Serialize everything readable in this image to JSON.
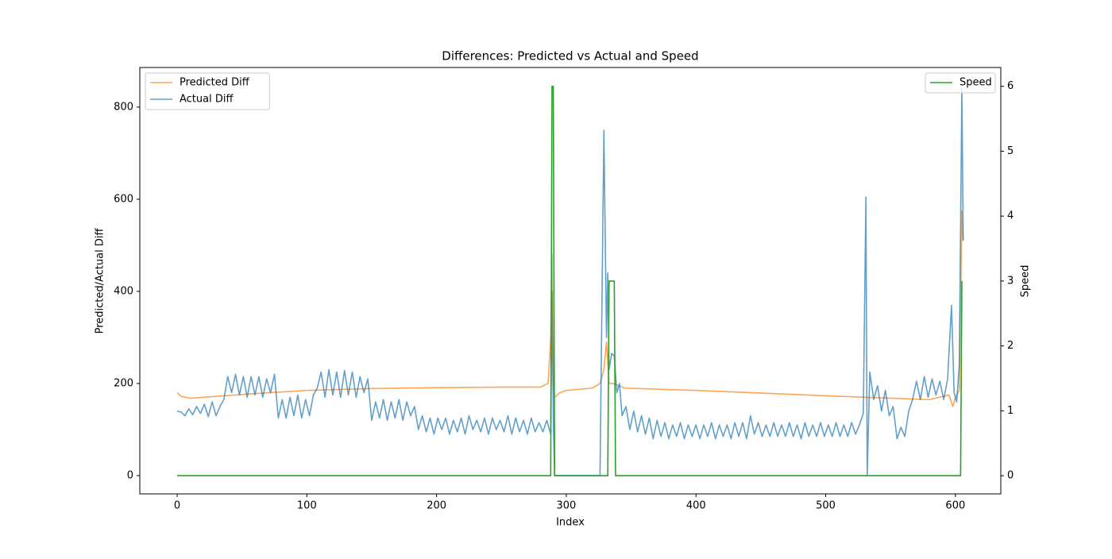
{
  "chart_data": {
    "type": "line",
    "title": "Differences: Predicted vs Actual and Speed",
    "xlabel": "Index",
    "ylabel": "Predicted/Actual Diff",
    "y2label": "Speed",
    "xlim": [
      -28.8,
      635
    ],
    "ylim": [
      -39.7,
      886
    ],
    "y2lim": [
      -0.28,
      6.29
    ],
    "xticks": [
      0,
      100,
      200,
      300,
      400,
      500,
      600
    ],
    "yticks": [
      0,
      200,
      400,
      600,
      800
    ],
    "y2ticks": [
      0,
      1,
      2,
      3,
      4,
      5,
      6
    ],
    "legend": "upper left",
    "y2legend": "upper right",
    "series": [
      {
        "name": "Predicted Diff",
        "color": "#ff7f0e",
        "x": [
          0,
          3,
          10,
          30,
          60,
          100,
          150,
          200,
          250,
          280,
          286,
          288,
          289,
          290,
          291,
          295,
          300,
          320,
          326,
          329,
          331,
          333,
          336,
          338,
          345,
          400,
          460,
          530,
          580,
          595,
          598,
          600,
          603,
          605,
          606
        ],
        "values": [
          180,
          172,
          168,
          172,
          178,
          185,
          189,
          191,
          192,
          192,
          200,
          300,
          480,
          200,
          170,
          180,
          185,
          190,
          200,
          230,
          290,
          200,
          200,
          198,
          190,
          185,
          178,
          170,
          165,
          175,
          150,
          170,
          185,
          575,
          510
        ]
      },
      {
        "name": "Actual Diff",
        "color": "#1f77b4",
        "x": [
          0,
          3,
          6,
          9,
          12,
          15,
          18,
          21,
          24,
          27,
          30,
          33,
          36,
          39,
          42,
          45,
          48,
          51,
          54,
          57,
          60,
          63,
          66,
          69,
          72,
          75,
          78,
          81,
          84,
          87,
          90,
          93,
          96,
          99,
          102,
          105,
          108,
          111,
          114,
          117,
          120,
          123,
          126,
          129,
          132,
          135,
          138,
          141,
          144,
          147,
          150,
          153,
          156,
          159,
          162,
          165,
          168,
          171,
          174,
          177,
          180,
          183,
          186,
          189,
          192,
          195,
          198,
          201,
          204,
          207,
          210,
          213,
          216,
          219,
          222,
          225,
          228,
          231,
          234,
          237,
          240,
          243,
          246,
          249,
          252,
          255,
          258,
          261,
          264,
          267,
          270,
          273,
          276,
          279,
          282,
          285,
          288,
          289,
          290,
          291,
          326,
          329,
          331,
          332,
          333,
          335,
          337,
          339,
          341,
          343,
          346,
          349,
          352,
          355,
          358,
          361,
          364,
          367,
          370,
          373,
          376,
          379,
          382,
          385,
          388,
          391,
          394,
          397,
          400,
          403,
          406,
          409,
          412,
          415,
          418,
          421,
          424,
          427,
          430,
          433,
          436,
          439,
          442,
          445,
          448,
          451,
          454,
          457,
          460,
          463,
          466,
          469,
          472,
          475,
          478,
          481,
          484,
          487,
          490,
          493,
          496,
          499,
          502,
          505,
          508,
          511,
          514,
          517,
          520,
          523,
          526,
          529,
          531,
          532,
          534,
          537,
          540,
          543,
          546,
          549,
          552,
          555,
          558,
          561,
          564,
          567,
          570,
          573,
          576,
          579,
          582,
          585,
          588,
          591,
          594,
          597,
          599,
          601,
          603,
          605,
          606
        ],
        "values": [
          140,
          138,
          130,
          145,
          132,
          150,
          135,
          155,
          128,
          160,
          130,
          150,
          165,
          215,
          180,
          220,
          175,
          215,
          170,
          215,
          175,
          215,
          170,
          210,
          180,
          220,
          125,
          165,
          125,
          170,
          130,
          175,
          125,
          165,
          130,
          175,
          190,
          225,
          170,
          230,
          175,
          225,
          170,
          228,
          175,
          225,
          170,
          215,
          180,
          210,
          120,
          160,
          125,
          165,
          120,
          160,
          125,
          165,
          120,
          160,
          130,
          150,
          100,
          130,
          95,
          125,
          90,
          125,
          100,
          125,
          90,
          120,
          95,
          125,
          90,
          130,
          100,
          120,
          95,
          125,
          90,
          125,
          100,
          120,
          95,
          130,
          90,
          125,
          95,
          120,
          90,
          125,
          95,
          115,
          95,
          120,
          90,
          400,
          120,
          0,
          0,
          750,
          300,
          440,
          230,
          265,
          260,
          180,
          200,
          130,
          150,
          100,
          140,
          95,
          130,
          90,
          125,
          80,
          120,
          85,
          115,
          80,
          110,
          85,
          115,
          80,
          110,
          85,
          110,
          80,
          110,
          85,
          115,
          80,
          110,
          85,
          110,
          80,
          115,
          85,
          115,
          80,
          130,
          90,
          115,
          85,
          110,
          85,
          115,
          85,
          110,
          85,
          115,
          85,
          110,
          80,
          115,
          85,
          110,
          85,
          115,
          85,
          110,
          85,
          115,
          85,
          110,
          85,
          115,
          90,
          110,
          135,
          605,
          0,
          225,
          165,
          195,
          140,
          185,
          130,
          150,
          80,
          105,
          85,
          140,
          165,
          205,
          165,
          215,
          170,
          210,
          175,
          205,
          165,
          210,
          370,
          180,
          160,
          240,
          840,
          510
        ]
      },
      {
        "name": "Speed",
        "color": "#2ca02c",
        "axis": "y2",
        "x": [
          0,
          288,
          289,
          290,
          291,
          332,
          333,
          337,
          338,
          604,
          605
        ],
        "values": [
          0,
          0,
          6,
          6,
          0,
          0,
          3,
          3,
          0,
          0,
          3
        ]
      }
    ]
  }
}
